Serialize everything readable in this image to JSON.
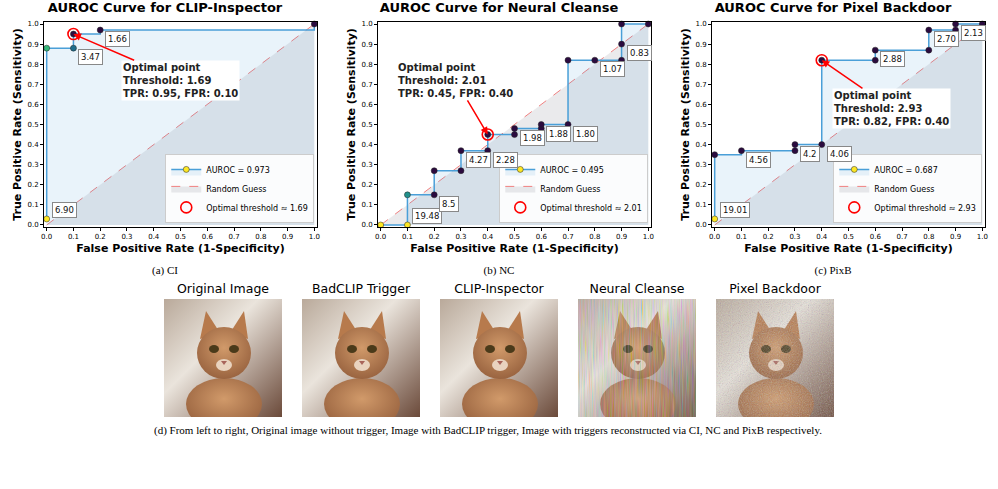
{
  "chart_data": [
    {
      "type": "line",
      "title": "AUROC Curve for CLIP-Inspector",
      "caption": "(a) CI",
      "x_label": "False Positive Rate (1-Specificity)",
      "y_label": "True Positive Rate (Sensitivity)",
      "xlim": [
        -0.01,
        1.01
      ],
      "ylim": [
        -0.01,
        1.01
      ],
      "xticks": [
        {
          "value": 0,
          "label": "0.0"
        },
        0.1,
        0.2,
        0.3,
        0.4,
        0.5,
        0.6,
        0.7,
        0.8,
        0.9,
        {
          "value": 1,
          "label": "1.0"
        }
      ],
      "yticks": [
        {
          "value": 0,
          "label": "0.0"
        },
        0.1,
        0.2,
        0.3,
        0.4,
        0.5,
        0.6,
        0.7,
        0.8,
        0.9,
        {
          "value": 1,
          "label": "1.0"
        }
      ],
      "grid": false,
      "legend": "lower right",
      "annotation": "Optimal point\nThreshold: 1.69\nTPR: 0.95, FPR: 0.10",
      "series": [
        {
          "name": "AUROC = 0.973",
          "color": "#4a9fd8",
          "line_style": "step",
          "x": [
            0,
            0,
            0.1,
            0.1,
            0.2,
            1.0
          ],
          "values": [
            0.03,
            0.88,
            0.88,
            0.95,
            0.97,
            1.0
          ],
          "thresholds": [
            "6.90",
            null,
            "3.47",
            null,
            "1.66",
            null
          ],
          "colors": [
            "#fde725",
            "#35b779",
            "#1f6e8c",
            "#2b0b3f",
            "#2b0b3f",
            "#2b0b3f"
          ]
        },
        {
          "name": "Random Guess",
          "color": "#f08080",
          "line_style": "dashed",
          "x": [
            0,
            1
          ],
          "values": [
            0,
            1
          ]
        },
        {
          "name": "Optimal threshold ≈ 1.69",
          "color": "#ff0000",
          "marker": "open circle",
          "x": [
            0.1
          ],
          "values": [
            0.95
          ]
        }
      ]
    },
    {
      "type": "line",
      "title": "AUROC Curve for Neural Cleanse",
      "caption": "(b) NC",
      "x_label": "False Positive Rate (1-Specificity)",
      "y_label": "True Positive Rate (Sensitivity)",
      "xlim": [
        -0.01,
        1.01
      ],
      "ylim": [
        -0.01,
        1.01
      ],
      "xticks": [
        {
          "value": 0,
          "label": "0.0"
        },
        0.1,
        0.2,
        0.3,
        0.4,
        0.5,
        0.6,
        0.7,
        0.8,
        0.9,
        {
          "value": 1,
          "label": "1.0"
        }
      ],
      "yticks": [
        {
          "value": 0,
          "label": "0.0"
        },
        0.1,
        0.2,
        0.3,
        0.4,
        0.5,
        0.6,
        0.7,
        0.8,
        0.9,
        {
          "value": 1,
          "label": "1.0"
        }
      ],
      "grid": false,
      "legend": "lower right",
      "annotation": "Optimal point\nThreshold: 2.01\nTPR: 0.45, FPR: 0.40",
      "series": [
        {
          "name": "AUROC = 0.495",
          "color": "#4a9fd8",
          "line_style": "step",
          "x": [
            0,
            0.1,
            0.1,
            0.2,
            0.2,
            0.3,
            0.3,
            0.4,
            0.4,
            0.5,
            0.5,
            0.6,
            0.6,
            0.7,
            0.7,
            0.8,
            0.9,
            0.9,
            0.9,
            1.0
          ],
          "values": [
            0,
            0,
            0.15,
            0.15,
            0.27,
            0.27,
            0.37,
            0.37,
            0.45,
            0.45,
            0.48,
            0.48,
            0.5,
            0.5,
            0.82,
            0.82,
            0.82,
            0.9,
            1.0,
            1.0
          ],
          "thresholds": [
            null,
            "19.48",
            null,
            "8.5",
            null,
            null,
            "4.27",
            "2.28",
            null,
            null,
            "1.98",
            null,
            "1.88",
            "1.80",
            null,
            "1.07",
            null,
            "0.83",
            null,
            null
          ],
          "colors": [
            "#fde725",
            "#fde725",
            "#21918c",
            "#2b0b3f",
            "#2b0b3f",
            "#2b0b3f",
            "#2b0b3f",
            "#2b0b3f",
            "#2b0b3f",
            "#2b0b3f",
            "#2b0b3f",
            "#2b0b3f",
            "#2b0b3f",
            "#2b0b3f",
            "#2b0b3f",
            "#2b0b3f",
            "#2b0b3f",
            "#2b0b3f",
            "#2b0b3f",
            "#2b0b3f"
          ]
        },
        {
          "name": "Random Guess",
          "color": "#f08080",
          "line_style": "dashed",
          "x": [
            0,
            1
          ],
          "values": [
            0,
            1
          ]
        },
        {
          "name": "Optimal threshold ≈ 2.01",
          "color": "#ff0000",
          "marker": "open circle",
          "x": [
            0.4
          ],
          "values": [
            0.45
          ]
        }
      ]
    },
    {
      "type": "line",
      "title": "AUROC Curve for Pixel Backdoor",
      "caption": "(c) PixB",
      "x_label": "False Positive Rate (1-Specificity)",
      "y_label": "True Positive Rate (Sensitivity)",
      "xlim": [
        -0.01,
        1.01
      ],
      "ylim": [
        -0.01,
        1.01
      ],
      "xticks": [
        {
          "value": 0,
          "label": "0.0"
        },
        0.1,
        0.2,
        0.3,
        0.4,
        0.5,
        0.6,
        0.7,
        0.8,
        0.9,
        {
          "value": 1,
          "label": "1.0"
        }
      ],
      "yticks": [
        {
          "value": 0,
          "label": "0.0"
        },
        0.1,
        0.2,
        0.3,
        0.4,
        0.5,
        0.6,
        0.7,
        0.8,
        0.9,
        {
          "value": 1,
          "label": "1.0"
        }
      ],
      "grid": false,
      "legend": "lower right",
      "annotation": "Optimal point\nThreshold: 2.93\nTPR: 0.82, FPR: 0.40",
      "series": [
        {
          "name": "AUROC = 0.687",
          "color": "#4a9fd8",
          "line_style": "step",
          "x": [
            0,
            0,
            0.1,
            0.3,
            0.3,
            0.4,
            0.4,
            0.6,
            0.6,
            0.8,
            0.8,
            0.9,
            0.9,
            1.0
          ],
          "values": [
            0.03,
            0.35,
            0.37,
            0.37,
            0.4,
            0.4,
            0.82,
            0.82,
            0.87,
            0.87,
            0.97,
            0.97,
            1.0,
            1.0
          ],
          "thresholds": [
            "19.01",
            null,
            "4.56",
            null,
            "4.2",
            "4.06",
            null,
            null,
            "2.88",
            null,
            "2.70",
            null,
            "2.13",
            null
          ],
          "colors": [
            "#fde725",
            "#2b0b3f",
            "#2b0b3f",
            "#2b0b3f",
            "#2b0b3f",
            "#2b0b3f",
            "#2b0b3f",
            "#2b0b3f",
            "#2b0b3f",
            "#2b0b3f",
            "#2b0b3f",
            "#2b0b3f",
            "#2b0b3f",
            "#2b0b3f"
          ]
        },
        {
          "name": "Random Guess",
          "color": "#f08080",
          "line_style": "dashed",
          "x": [
            0,
            1
          ],
          "values": [
            0,
            1
          ]
        },
        {
          "name": "Optimal threshold ≈ 2.93",
          "color": "#ff0000",
          "marker": "open circle",
          "x": [
            0.4
          ],
          "values": [
            0.82
          ]
        }
      ]
    }
  ],
  "image_panel": {
    "titles": [
      "Original Image",
      "BadCLIP Trigger",
      "CLIP-Inspector",
      "Neural Cleanse",
      "Pixel Backdoor"
    ],
    "caption": "(d) From left to right, Original image without trigger, Image with BadCLIP trigger, Image with triggers reconstructed via CI, NC and PixB respectively."
  }
}
